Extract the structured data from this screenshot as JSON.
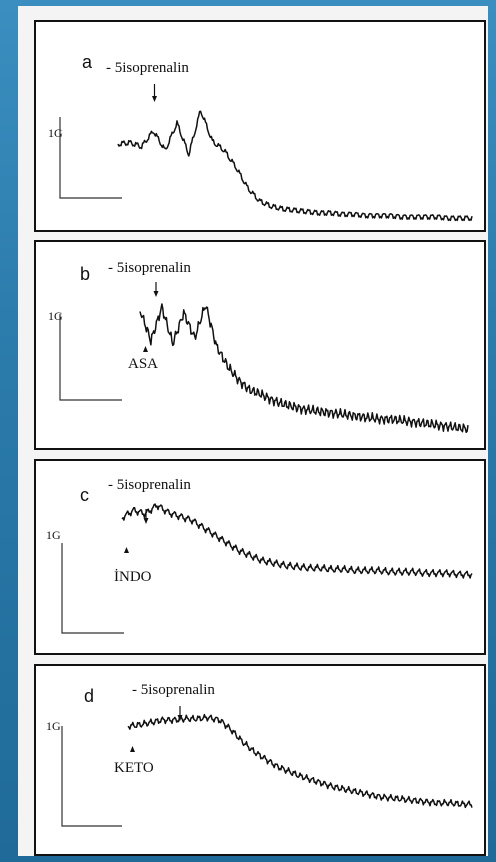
{
  "chart_data": [
    {
      "type": "line",
      "panel_label": "a",
      "agonist_label": "- 5isoprenalin",
      "pretreatment_label": "",
      "scale_label": "1G",
      "series": [
        {
          "values": [
            0.6,
            0.61,
            0.58,
            0.7,
            0.55,
            0.76,
            0.52,
            0.86,
            0.62,
            0.55,
            0.42,
            0.26,
            0.16,
            0.12,
            0.1,
            0.09,
            0.08,
            0.07,
            0.07,
            0.06,
            0.06,
            0.05,
            0.05,
            0.05,
            0.04,
            0.04,
            0.04,
            0.04,
            0.03,
            0.03,
            0.03
          ]
        }
      ]
    },
    {
      "type": "line",
      "panel_label": "b",
      "agonist_label": "- 5isoprenalin",
      "pretreatment_label": "ASA",
      "scale_label": "1G",
      "series": [
        {
          "values": [
            0.9,
            0.68,
            0.92,
            0.66,
            0.88,
            0.7,
            0.94,
            0.64,
            0.5,
            0.4,
            0.33,
            0.3,
            0.26,
            0.23,
            0.21,
            0.19,
            0.18,
            0.17,
            0.16,
            0.15,
            0.14,
            0.13,
            0.12,
            0.12,
            0.11,
            0.1,
            0.09,
            0.08,
            0.07,
            0.06,
            0.05
          ]
        }
      ]
    },
    {
      "type": "line",
      "panel_label": "c",
      "agonist_label": "- 5isoprenalin",
      "pretreatment_label": "İNDO",
      "scale_label": "1G",
      "series": [
        {
          "values": [
            0.82,
            0.88,
            0.85,
            0.92,
            0.86,
            0.83,
            0.8,
            0.74,
            0.68,
            0.62,
            0.56,
            0.52,
            0.48,
            0.46,
            0.44,
            0.43,
            0.42,
            0.42,
            0.41,
            0.41,
            0.4,
            0.4,
            0.4,
            0.39,
            0.39,
            0.39,
            0.38,
            0.38,
            0.38,
            0.37,
            0.37
          ]
        }
      ]
    },
    {
      "type": "line",
      "panel_label": "d",
      "agonist_label": "- 5isoprenalin",
      "pretreatment_label": "KETO",
      "scale_label": "1G",
      "series": [
        {
          "values": [
            0.95,
            0.96,
            0.98,
            1.0,
            1.0,
            1.01,
            1.01,
            1.02,
            1.0,
            0.92,
            0.82,
            0.74,
            0.68,
            0.62,
            0.58,
            0.54,
            0.51,
            0.48,
            0.45,
            0.43,
            0.41,
            0.39,
            0.37,
            0.36,
            0.35,
            0.34,
            0.33,
            0.32,
            0.32,
            0.31,
            0.31
          ]
        }
      ]
    }
  ]
}
